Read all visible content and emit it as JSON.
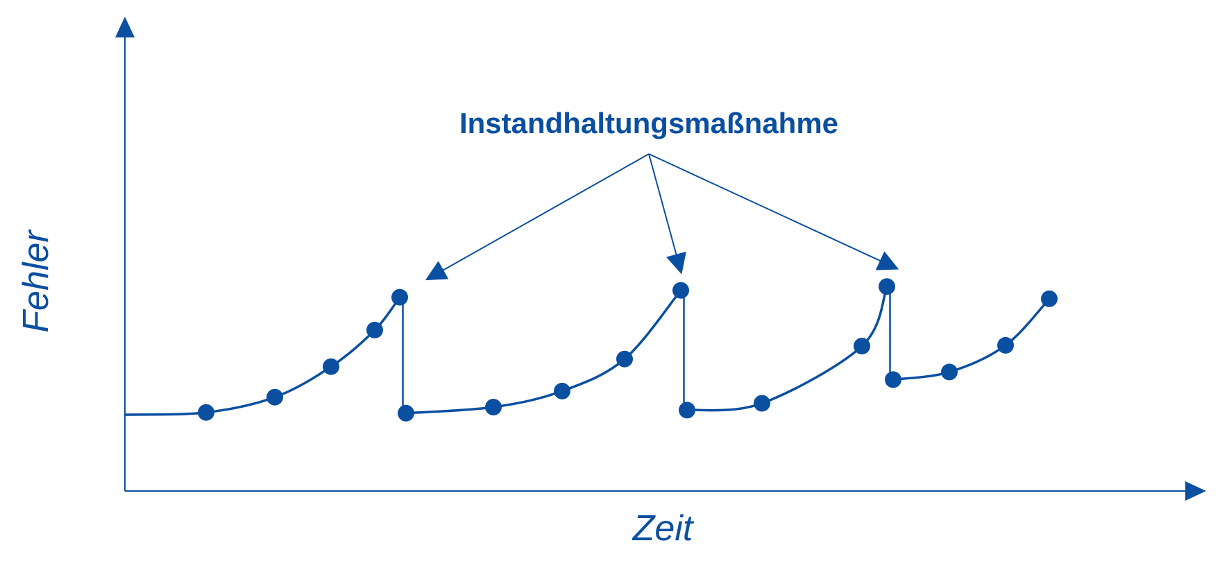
{
  "colors": {
    "primary": "#0a4fa0"
  },
  "labels": {
    "y_axis": "Fehler",
    "x_axis": "Zeit",
    "callout": "Instandhaltungsmaßnahme"
  },
  "chart_data": {
    "type": "line",
    "title": "",
    "xlabel": "Zeit",
    "ylabel": "Fehler",
    "segments": [
      {
        "name": "",
        "x": [
          0,
          13,
          24,
          33,
          40,
          44
        ],
        "y": [
          10,
          10.3,
          12.3,
          16.3,
          21.1,
          25.4
        ]
      },
      {
        "name": "",
        "x": [
          45,
          59,
          70,
          80,
          89
        ],
        "y": [
          10.2,
          11,
          13.1,
          17.3,
          26.3
        ]
      },
      {
        "name": "",
        "x": [
          90,
          102,
          118,
          122
        ],
        "y": [
          10.6,
          11.5,
          19,
          26.8
        ]
      },
      {
        "name": "",
        "x": [
          123,
          132,
          141,
          148
        ],
        "y": [
          14.6,
          15.6,
          19.1,
          25.2
        ]
      }
    ],
    "maintenance_at_x": [
      44.5,
      89.5,
      122.5
    ]
  }
}
